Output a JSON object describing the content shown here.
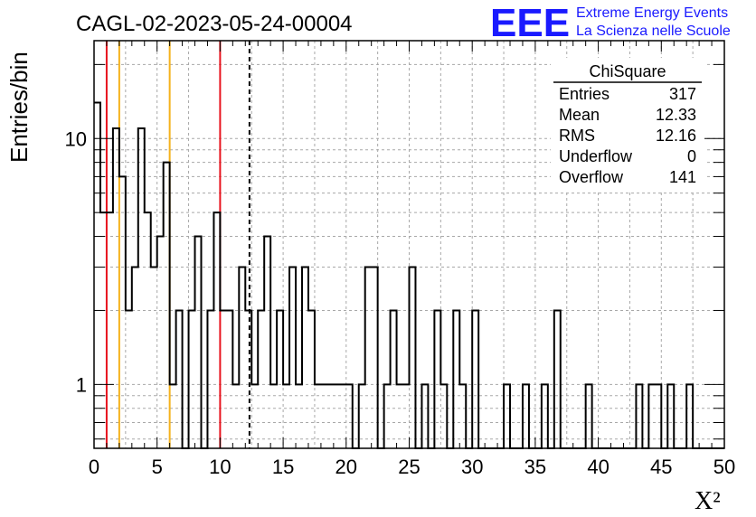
{
  "chart_data": {
    "type": "bar",
    "title": "CAGL-02-2023-05-24-00004",
    "xlabel": "X²",
    "ylabel": "Entries/bin",
    "xlim": [
      0,
      50
    ],
    "ylim": [
      0.55,
      25
    ],
    "yscale": "log",
    "grid": true,
    "bin_width": 0.5,
    "x_ticks": [
      "0",
      "5",
      "10",
      "15",
      "20",
      "25",
      "30",
      "35",
      "40",
      "45",
      "50"
    ],
    "y_ticks": [
      "1",
      "10"
    ],
    "bins": [
      {
        "x": 0.0,
        "value": 14
      },
      {
        "x": 0.5,
        "value": 5
      },
      {
        "x": 1.0,
        "value": 5
      },
      {
        "x": 1.5,
        "value": 11
      },
      {
        "x": 2.0,
        "value": 7
      },
      {
        "x": 2.5,
        "value": 2
      },
      {
        "x": 3.0,
        "value": 3
      },
      {
        "x": 3.5,
        "value": 11
      },
      {
        "x": 4.0,
        "value": 5
      },
      {
        "x": 4.5,
        "value": 3
      },
      {
        "x": 5.0,
        "value": 4
      },
      {
        "x": 5.5,
        "value": 8
      },
      {
        "x": 6.0,
        "value": 1
      },
      {
        "x": 6.5,
        "value": 2
      },
      {
        "x": 7.0,
        "value": 0
      },
      {
        "x": 7.5,
        "value": 2
      },
      {
        "x": 8.0,
        "value": 4
      },
      {
        "x": 8.5,
        "value": 0
      },
      {
        "x": 9.0,
        "value": 2
      },
      {
        "x": 9.5,
        "value": 5
      },
      {
        "x": 10.0,
        "value": 2
      },
      {
        "x": 10.5,
        "value": 2
      },
      {
        "x": 11.0,
        "value": 1
      },
      {
        "x": 11.5,
        "value": 3
      },
      {
        "x": 12.0,
        "value": 2
      },
      {
        "x": 12.5,
        "value": 1
      },
      {
        "x": 13.0,
        "value": 2
      },
      {
        "x": 13.5,
        "value": 4
      },
      {
        "x": 14.0,
        "value": 1
      },
      {
        "x": 14.5,
        "value": 2
      },
      {
        "x": 15.0,
        "value": 1
      },
      {
        "x": 15.5,
        "value": 3
      },
      {
        "x": 16.0,
        "value": 1
      },
      {
        "x": 16.5,
        "value": 3
      },
      {
        "x": 17.0,
        "value": 2
      },
      {
        "x": 17.5,
        "value": 1
      },
      {
        "x": 18.0,
        "value": 1
      },
      {
        "x": 18.5,
        "value": 1
      },
      {
        "x": 19.0,
        "value": 1
      },
      {
        "x": 19.5,
        "value": 1
      },
      {
        "x": 20.0,
        "value": 1
      },
      {
        "x": 20.5,
        "value": 0
      },
      {
        "x": 21.0,
        "value": 1
      },
      {
        "x": 21.5,
        "value": 3
      },
      {
        "x": 22.0,
        "value": 3
      },
      {
        "x": 22.5,
        "value": 0
      },
      {
        "x": 23.0,
        "value": 1
      },
      {
        "x": 23.5,
        "value": 2
      },
      {
        "x": 24.0,
        "value": 1
      },
      {
        "x": 24.5,
        "value": 1
      },
      {
        "x": 25.0,
        "value": 3
      },
      {
        "x": 25.5,
        "value": 0
      },
      {
        "x": 26.0,
        "value": 1
      },
      {
        "x": 26.5,
        "value": 0
      },
      {
        "x": 27.0,
        "value": 2
      },
      {
        "x": 27.5,
        "value": 1
      },
      {
        "x": 28.0,
        "value": 0
      },
      {
        "x": 28.5,
        "value": 2
      },
      {
        "x": 29.0,
        "value": 1
      },
      {
        "x": 29.5,
        "value": 0
      },
      {
        "x": 30.0,
        "value": 2
      },
      {
        "x": 30.5,
        "value": 0
      },
      {
        "x": 31.0,
        "value": 0
      },
      {
        "x": 31.5,
        "value": 0
      },
      {
        "x": 32.0,
        "value": 0
      },
      {
        "x": 32.5,
        "value": 1
      },
      {
        "x": 33.0,
        "value": 0
      },
      {
        "x": 33.5,
        "value": 0
      },
      {
        "x": 34.0,
        "value": 1
      },
      {
        "x": 34.5,
        "value": 0
      },
      {
        "x": 35.0,
        "value": 0
      },
      {
        "x": 35.5,
        "value": 1
      },
      {
        "x": 36.0,
        "value": 0
      },
      {
        "x": 36.5,
        "value": 2
      },
      {
        "x": 37.0,
        "value": 0
      },
      {
        "x": 37.5,
        "value": 0
      },
      {
        "x": 38.0,
        "value": 0
      },
      {
        "x": 38.5,
        "value": 0
      },
      {
        "x": 39.0,
        "value": 1
      },
      {
        "x": 39.5,
        "value": 0
      },
      {
        "x": 40.0,
        "value": 0
      },
      {
        "x": 40.5,
        "value": 0
      },
      {
        "x": 41.0,
        "value": 0
      },
      {
        "x": 41.5,
        "value": 0
      },
      {
        "x": 42.0,
        "value": 0
      },
      {
        "x": 42.5,
        "value": 0
      },
      {
        "x": 43.0,
        "value": 1
      },
      {
        "x": 43.5,
        "value": 0
      },
      {
        "x": 44.0,
        "value": 1
      },
      {
        "x": 44.5,
        "value": 1
      },
      {
        "x": 45.0,
        "value": 0
      },
      {
        "x": 45.5,
        "value": 1
      },
      {
        "x": 46.0,
        "value": 0
      },
      {
        "x": 46.5,
        "value": 0
      },
      {
        "x": 47.0,
        "value": 1
      },
      {
        "x": 47.5,
        "value": 0
      }
    ],
    "markers": [
      {
        "x": 1,
        "color": "#e8141e",
        "style": "solid"
      },
      {
        "x": 2,
        "color": "#f5b21c",
        "style": "solid"
      },
      {
        "x": 6,
        "color": "#f5b21c",
        "style": "solid"
      },
      {
        "x": 10,
        "color": "#e8141e",
        "style": "solid"
      },
      {
        "x": 12.33,
        "color": "#000000",
        "style": "dashed"
      }
    ],
    "stats": {
      "title": "ChiSquare",
      "rows": [
        {
          "label": "Entries",
          "value": "317"
        },
        {
          "label": "Mean",
          "value": "12.33"
        },
        {
          "label": "RMS",
          "value": "12.16"
        },
        {
          "label": "Underflow",
          "value": "0"
        },
        {
          "label": "Overflow",
          "value": "141"
        }
      ]
    }
  },
  "logo": {
    "text": "EEE",
    "line1": "Extreme Energy Events",
    "line2": "La Scienza nelle Scuole",
    "color": "#1a1aff"
  }
}
